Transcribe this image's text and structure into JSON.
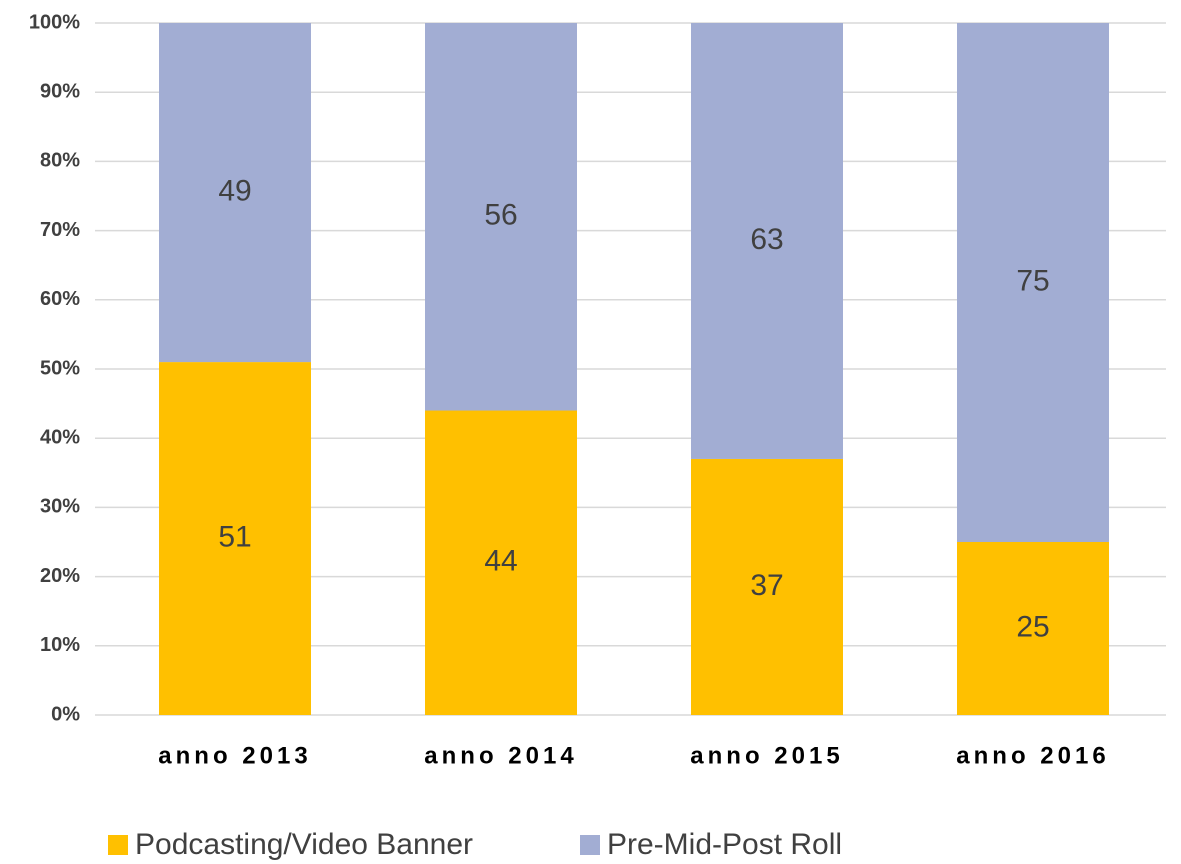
{
  "chart_data": {
    "type": "stacked_bar",
    "categories": [
      "anno 2013",
      "anno 2014",
      "anno 2015",
      "anno 2016"
    ],
    "series": [
      {
        "name": "Podcasting/Video Banner",
        "color": "#ffc000",
        "values": [
          51,
          44,
          37,
          25
        ]
      },
      {
        "name": "Pre-Mid-Post Roll",
        "color": "#a2add3",
        "values": [
          49,
          56,
          63,
          75
        ]
      }
    ],
    "ylim": [
      0,
      100
    ],
    "yticks": [
      {
        "value": 0,
        "label": "0%"
      },
      {
        "value": 10,
        "label": "10%"
      },
      {
        "value": 20,
        "label": "20%"
      },
      {
        "value": 30,
        "label": "30%"
      },
      {
        "value": 40,
        "label": "40%"
      },
      {
        "value": 50,
        "label": "50%"
      },
      {
        "value": 60,
        "label": "60%"
      },
      {
        "value": 70,
        "label": "70%"
      },
      {
        "value": 80,
        "label": "80%"
      },
      {
        "value": 90,
        "label": "90%"
      },
      {
        "value": 100,
        "label": "100%"
      }
    ],
    "grid": true,
    "legend": "bottom"
  }
}
